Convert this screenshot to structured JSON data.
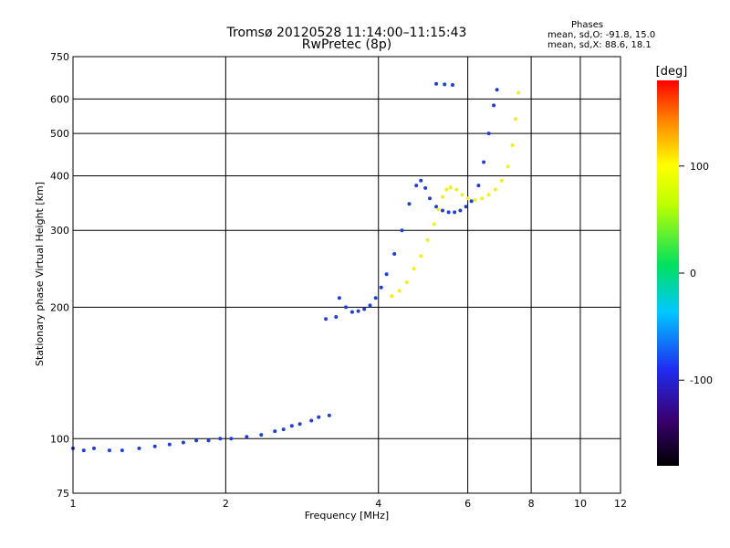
{
  "title_line1": "Tromsø 20120528 11:14:00–11:15:43",
  "title_line2": "RwPretec (8p)",
  "phases": {
    "heading": "Phases",
    "line_o": "mean, sd,O: -91.8, 15.0",
    "line_x": "mean, sd,X: 88.6, 18.1"
  },
  "colorbar": {
    "label": "[deg]",
    "range": [
      -180,
      180
    ],
    "ticks": [
      "100",
      "0",
      "-100"
    ],
    "tick_values": [
      100,
      0,
      -100
    ]
  },
  "colors": {
    "o_mode": "#1f3fd6",
    "x_mode": "#f0f020",
    "grid": "#000000"
  },
  "chart_data": {
    "type": "scatter",
    "xlabel": "Frequency [MHz]",
    "ylabel": "Stationary phase Virtual Height [km]",
    "x_scale": "log",
    "y_scale": "log",
    "xlim": [
      1,
      12
    ],
    "ylim": [
      75,
      750
    ],
    "x_ticks": [
      1,
      2,
      4,
      6,
      8,
      10,
      12
    ],
    "y_ticks": [
      75,
      100,
      200,
      300,
      400,
      500,
      600,
      750
    ],
    "grid": true,
    "series": [
      {
        "mode": "O",
        "phase_deg": -100,
        "x": [
          1.0,
          1.05,
          1.1,
          1.18,
          1.25,
          1.35,
          1.45,
          1.55,
          1.65,
          1.75,
          1.85,
          1.95,
          2.05,
          2.2,
          2.35,
          2.5,
          2.6,
          2.7,
          2.8,
          2.95,
          3.05,
          3.2,
          3.35,
          3.45,
          3.55,
          3.65,
          3.75,
          3.85,
          3.95,
          4.05,
          4.15,
          4.3,
          4.45,
          4.6,
          4.75,
          4.85,
          4.95,
          5.05,
          5.2,
          5.35,
          5.5,
          5.65,
          5.8,
          5.95,
          6.1,
          6.3,
          6.45,
          6.6,
          6.75,
          6.85,
          5.2,
          5.4,
          5.6,
          3.15,
          3.3
        ],
        "y": [
          95,
          94,
          95,
          94,
          94,
          95,
          96,
          97,
          98,
          99,
          99,
          100,
          100,
          101,
          102,
          104,
          105,
          107,
          108,
          110,
          112,
          113,
          210,
          200,
          195,
          196,
          198,
          202,
          210,
          222,
          238,
          265,
          300,
          345,
          380,
          390,
          375,
          355,
          340,
          333,
          330,
          330,
          333,
          340,
          350,
          380,
          430,
          500,
          580,
          630,
          650,
          648,
          646,
          188,
          190
        ]
      },
      {
        "mode": "X",
        "phase_deg": 100,
        "x": [
          4.25,
          4.4,
          4.55,
          4.7,
          4.85,
          5.0,
          5.15,
          5.25,
          5.35,
          5.45,
          5.55,
          5.7,
          5.85,
          6.0,
          6.2,
          6.4,
          6.6,
          6.8,
          7.0,
          7.2,
          7.35,
          7.45,
          7.55
        ],
        "y": [
          212,
          218,
          228,
          245,
          262,
          285,
          310,
          335,
          358,
          372,
          376,
          372,
          362,
          355,
          352,
          355,
          362,
          372,
          390,
          420,
          470,
          540,
          620
        ]
      }
    ]
  }
}
